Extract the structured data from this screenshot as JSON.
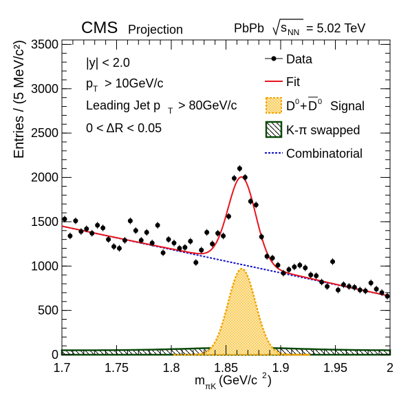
{
  "header": {
    "experiment": "CMS",
    "experiment_sub": "Projection",
    "system": "PbPb",
    "energy_sym": "s",
    "energy_sub": "NN",
    "energy_val": "= 5.02 TeV"
  },
  "cuts": [
    {
      "main": "|y| < 2.0",
      "sub": "",
      "tail": ""
    },
    {
      "main": "p",
      "sub": "T",
      "tail": "> 10GeV/c"
    },
    {
      "main": "Leading Jet p",
      "sub": "T",
      "tail": "> 80GeV/c"
    },
    {
      "main": "0 < ΔR < 0.05",
      "sub": "",
      "tail": ""
    }
  ],
  "legend": {
    "data": "Data",
    "fit": "Fit",
    "signal_d": "D",
    "signal_sup1": "0",
    "signal_plus": "+",
    "signal_dbar": "D",
    "signal_sup2": "0",
    "signal_tail": "Signal",
    "swapped": "K-π swapped",
    "comb": "Combinatorial"
  },
  "colors": {
    "fit": "#e8141c",
    "comb": "#1010c8",
    "signal": "#f2a400",
    "swapped": "#0a4a0a"
  },
  "chart_data": {
    "type": "scatter",
    "xlabel_main": "m",
    "xlabel_sub": "πK",
    "xlabel_tail": "(GeV/c",
    "xlabel_sup": "2",
    "xlabel_close": ")",
    "ylabel": "Entries / (5 MeV/c²)",
    "xlim": [
      1.7,
      2.0
    ],
    "ylim": [
      0,
      3550
    ],
    "xticks": [
      "1.7",
      "1.75",
      "1.8",
      "1.85",
      "1.9",
      "1.95",
      "2"
    ],
    "yticks": [
      "0",
      "500",
      "1000",
      "1500",
      "2000",
      "2500",
      "3000",
      "3500"
    ],
    "data_points": [
      [
        1.7025,
        1530
      ],
      [
        1.7075,
        1340
      ],
      [
        1.7125,
        1510
      ],
      [
        1.7175,
        1390
      ],
      [
        1.7225,
        1420
      ],
      [
        1.7275,
        1370
      ],
      [
        1.7325,
        1460
      ],
      [
        1.7375,
        1430
      ],
      [
        1.7425,
        1300
      ],
      [
        1.7475,
        1220
      ],
      [
        1.7525,
        1200
      ],
      [
        1.7575,
        1290
      ],
      [
        1.7625,
        1510
      ],
      [
        1.7675,
        1400
      ],
      [
        1.7725,
        1290
      ],
      [
        1.7775,
        1380
      ],
      [
        1.7825,
        1260
      ],
      [
        1.7875,
        1460
      ],
      [
        1.7925,
        1150
      ],
      [
        1.7975,
        1300
      ],
      [
        1.8025,
        1260
      ],
      [
        1.8075,
        1200
      ],
      [
        1.8125,
        1210
      ],
      [
        1.8175,
        1280
      ],
      [
        1.8225,
        1040
      ],
      [
        1.8275,
        1180
      ],
      [
        1.8325,
        1380
      ],
      [
        1.8375,
        1250
      ],
      [
        1.8425,
        1370
      ],
      [
        1.8475,
        1340
      ],
      [
        1.8525,
        1560
      ],
      [
        1.8575,
        1990
      ],
      [
        1.8625,
        2100
      ],
      [
        1.8675,
        2000
      ],
      [
        1.8725,
        1730
      ],
      [
        1.8775,
        1690
      ],
      [
        1.8825,
        1330
      ],
      [
        1.8875,
        1110
      ],
      [
        1.8925,
        1090
      ],
      [
        1.8975,
        1010
      ],
      [
        1.9025,
        920
      ],
      [
        1.9075,
        960
      ],
      [
        1.9125,
        990
      ],
      [
        1.9175,
        1010
      ],
      [
        1.9225,
        980
      ],
      [
        1.9275,
        900
      ],
      [
        1.9325,
        890
      ],
      [
        1.9375,
        820
      ],
      [
        1.9425,
        770
      ],
      [
        1.9475,
        1050
      ],
      [
        1.9525,
        730
      ],
      [
        1.9575,
        790
      ],
      [
        1.9625,
        770
      ],
      [
        1.9675,
        760
      ],
      [
        1.9725,
        730
      ],
      [
        1.9775,
        720
      ],
      [
        1.9825,
        810
      ],
      [
        1.9875,
        740
      ],
      [
        1.9925,
        700
      ],
      [
        1.9975,
        660
      ]
    ],
    "data_errors": 38,
    "combinatorial": {
      "x": [
        1.7,
        2.0
      ],
      "y": [
        1450,
        660
      ]
    },
    "signal": {
      "mean": 1.8645,
      "sigma": 0.0125,
      "amplitude": 970
    },
    "swapped": {
      "level": 50,
      "center": 1.865,
      "bump": 30,
      "width": 0.05
    },
    "fit_description": "Fit = Combinatorial + D0+D0bar Signal + K-pi swapped"
  }
}
